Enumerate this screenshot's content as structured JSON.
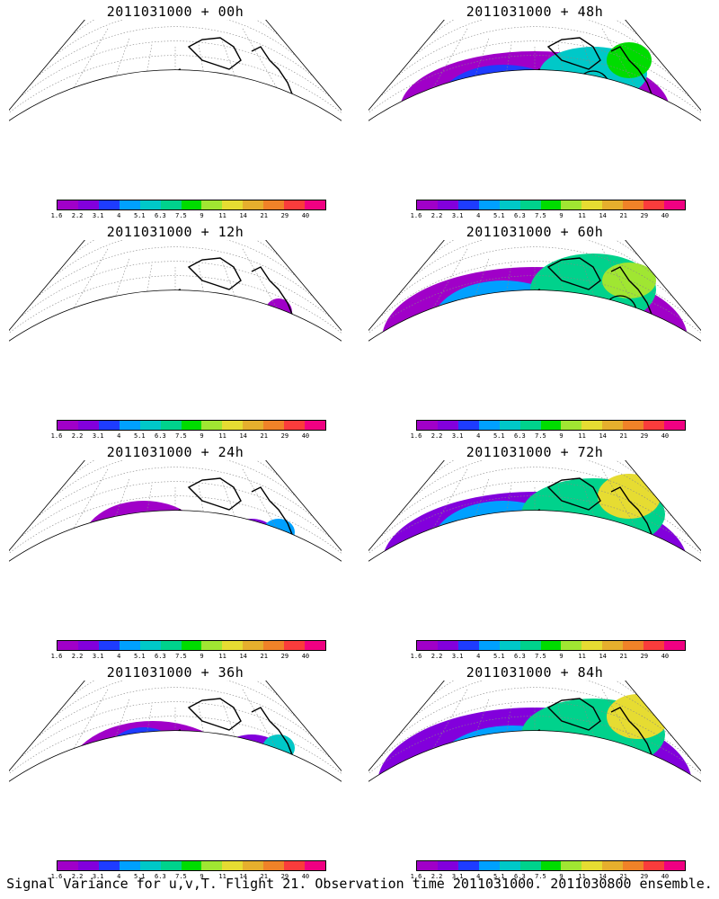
{
  "panels": [
    {
      "title": "2011031000 + 00h",
      "hour": 0
    },
    {
      "title": "2011031000 + 48h",
      "hour": 48
    },
    {
      "title": "2011031000 + 12h",
      "hour": 12
    },
    {
      "title": "2011031000 + 60h",
      "hour": 60
    },
    {
      "title": "2011031000 + 24h",
      "hour": 24
    },
    {
      "title": "2011031000 + 72h",
      "hour": 72
    },
    {
      "title": "2011031000 + 36h",
      "hour": 36
    },
    {
      "title": "2011031000 + 84h",
      "hour": 84
    }
  ],
  "colorbar": {
    "labels": [
      "1.6",
      "2.2",
      "3.1",
      "4",
      "5.1",
      "6.3",
      "7.5",
      "9",
      "11",
      "14",
      "21",
      "29",
      "40"
    ],
    "colors": [
      "#a000c8",
      "#8200dc",
      "#1e3cff",
      "#00a0ff",
      "#00c8c8",
      "#00d28c",
      "#00dc00",
      "#a0e632",
      "#e6dc32",
      "#e6af2d",
      "#f08228",
      "#fa3c3c",
      "#f00082"
    ]
  },
  "footer": "Signal Variance for u,v,T. Flight 21. Observation time 2011031000. 2011030800 ensemble."
}
